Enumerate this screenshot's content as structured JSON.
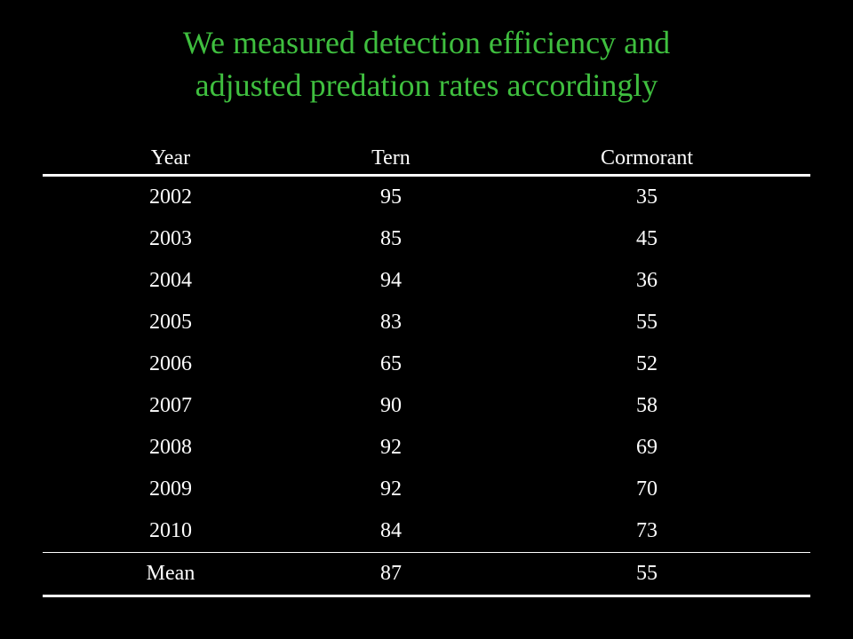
{
  "title": {
    "line1": "We measured detection efficiency and",
    "line2": "adjusted predation rates accordingly"
  },
  "colors": {
    "title": "#3fbf3f",
    "background": "#000000",
    "text": "#ffffff"
  },
  "table": {
    "headers": [
      "Year",
      "Tern",
      "Cormorant"
    ],
    "rows": [
      [
        "2002",
        "95",
        "35"
      ],
      [
        "2003",
        "85",
        "45"
      ],
      [
        "2004",
        "94",
        "36"
      ],
      [
        "2005",
        "83",
        "55"
      ],
      [
        "2006",
        "65",
        "52"
      ],
      [
        "2007",
        "90",
        "58"
      ],
      [
        "2008",
        "92",
        "69"
      ],
      [
        "2009",
        "92",
        "70"
      ],
      [
        "2010",
        "84",
        "73"
      ]
    ],
    "summary": [
      "Mean",
      "87",
      "55"
    ]
  }
}
